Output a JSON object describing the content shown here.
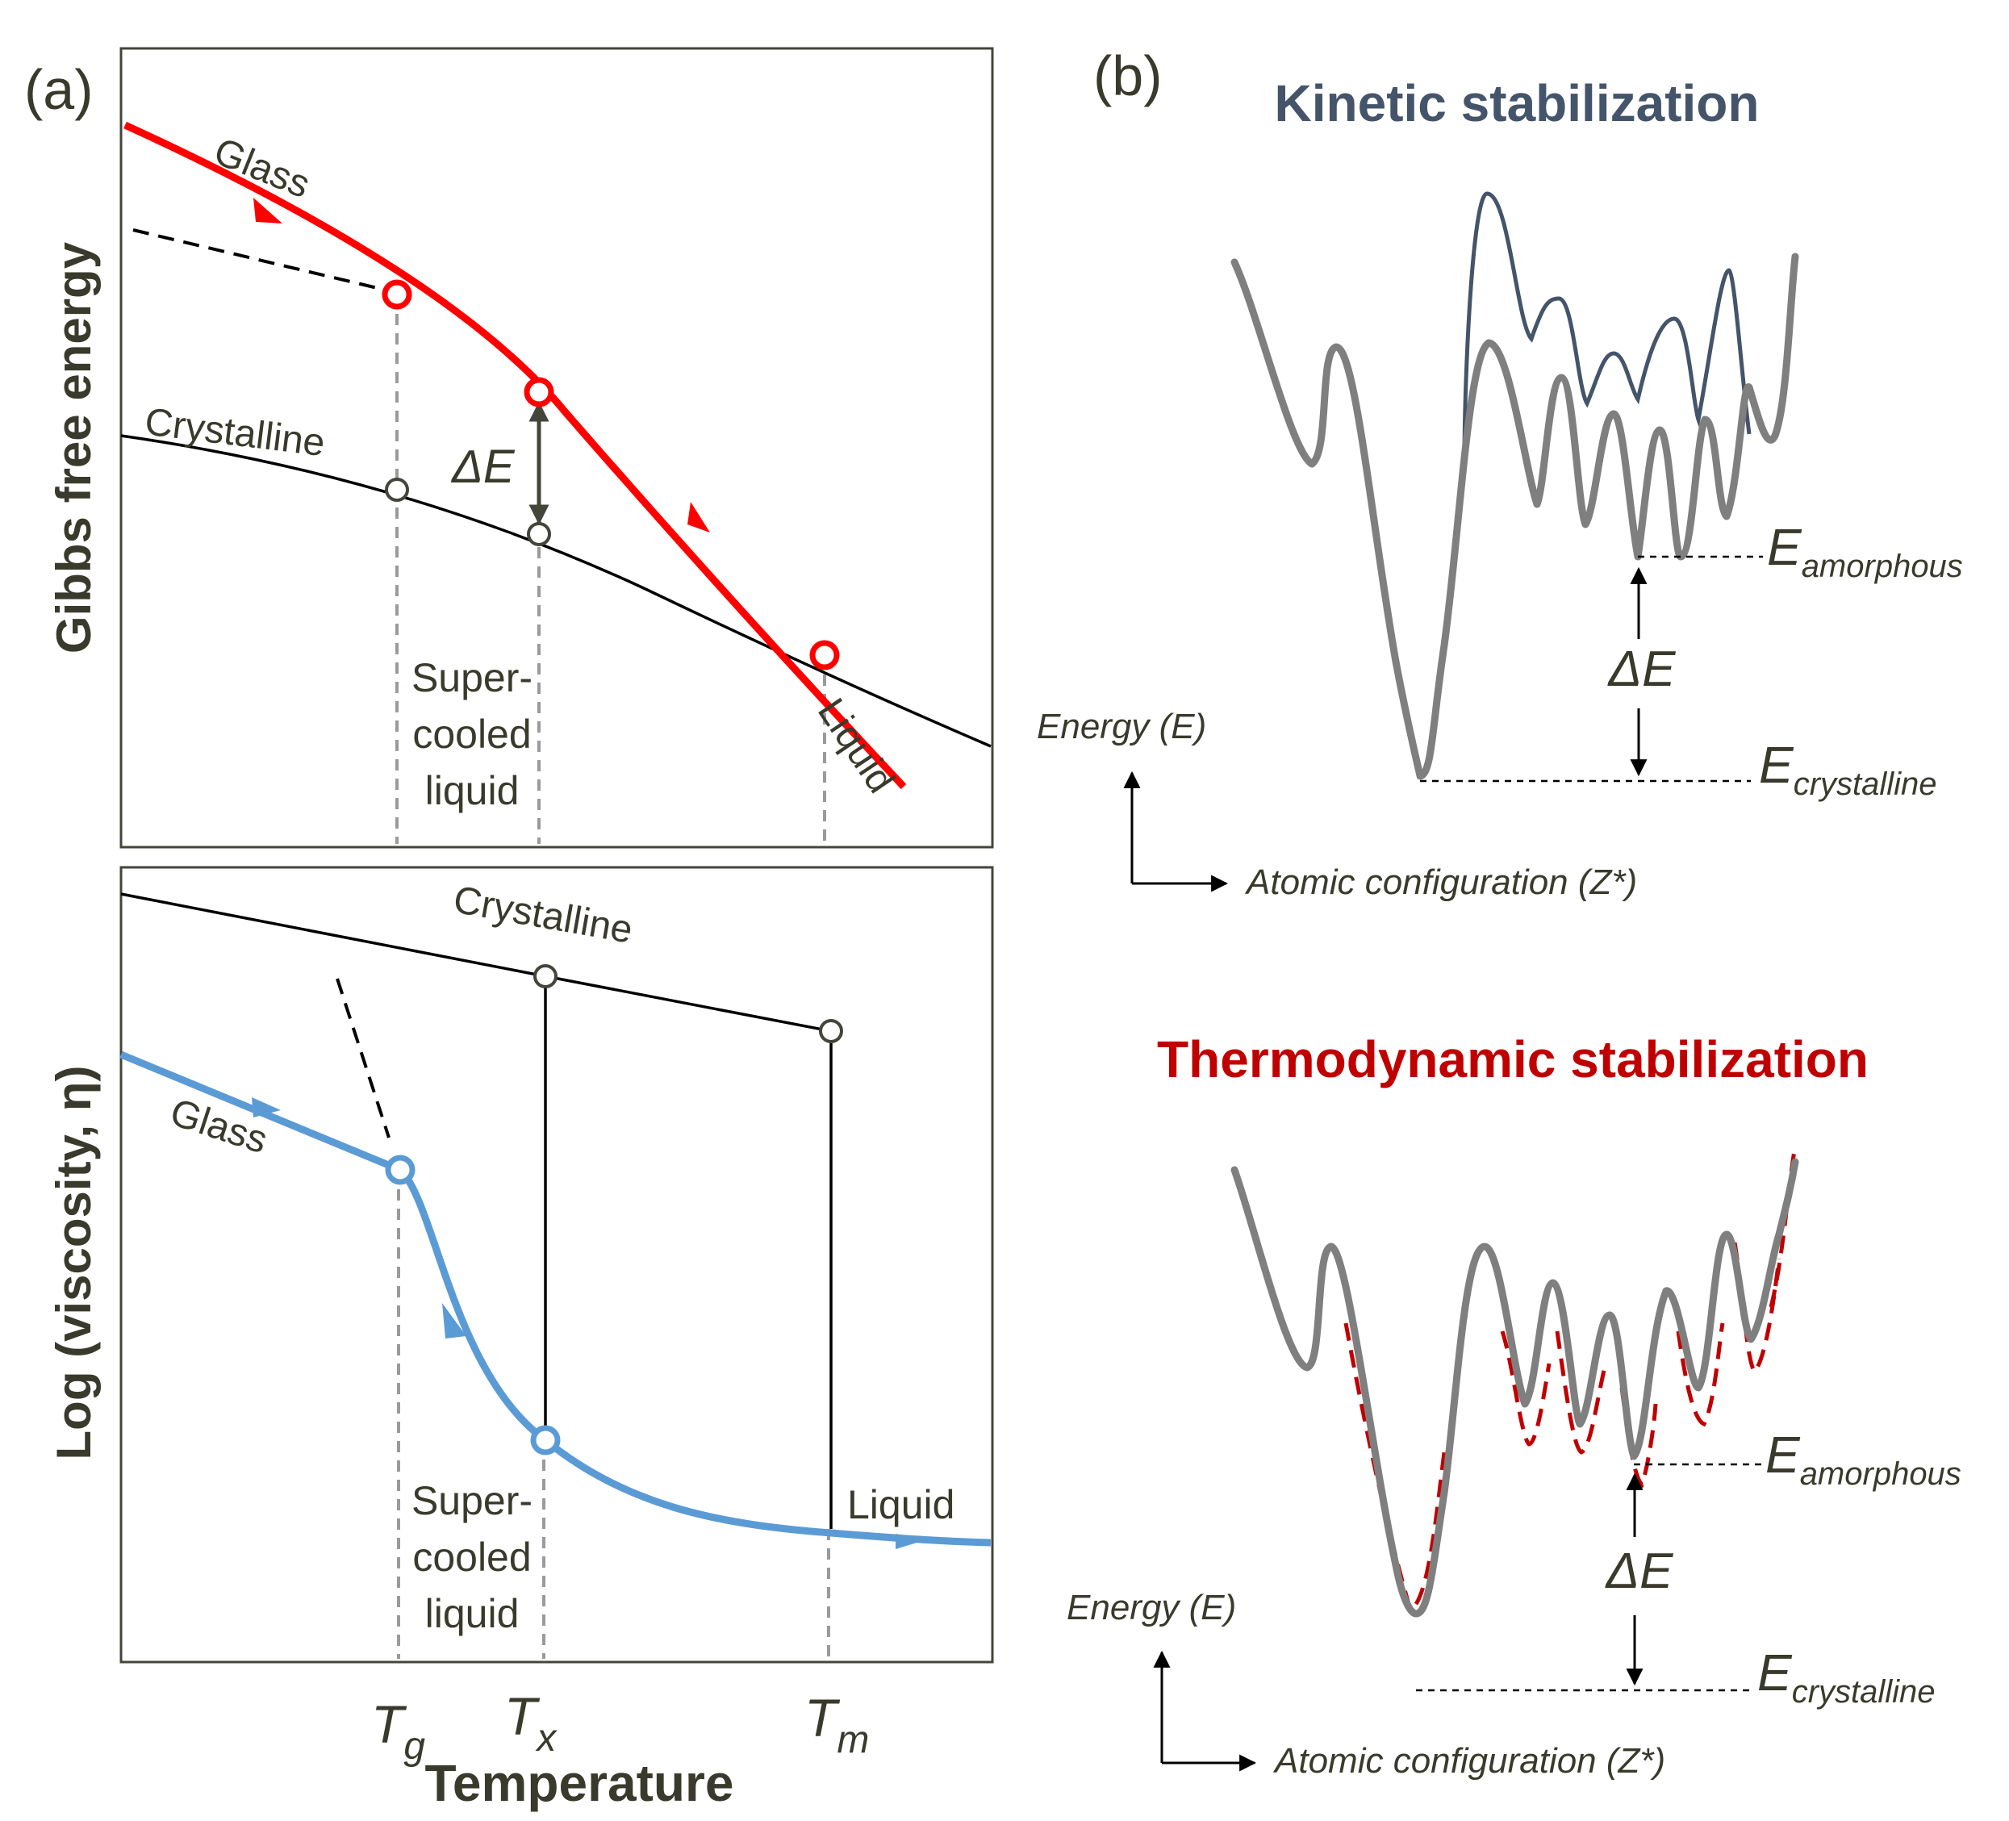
{
  "panel_a": {
    "label": "(a)",
    "top_plot": {
      "ylabel": "Gibbs free energy",
      "glass": "Glass",
      "crystalline": "Crystalline",
      "delta_e": "ΔE",
      "supercooled": [
        "Super-",
        "cooled",
        "liquid"
      ],
      "liquid": "Liquid"
    },
    "bottom_plot": {
      "ylabel": "Log (viscosity, η)",
      "crystalline": "Crystalline",
      "glass": "Glass",
      "supercooled": [
        "Super-",
        "cooled",
        "liquid"
      ],
      "liquid": "Liquid"
    },
    "x_ticks": [
      {
        "main": "T",
        "sub": "g"
      },
      {
        "main": "T",
        "sub": "x"
      },
      {
        "main": "T",
        "sub": "m"
      }
    ],
    "xlabel": "Temperature"
  },
  "panel_b": {
    "label": "(b)",
    "kinetic": {
      "title": "Kinetic stabilization",
      "title_color": "#44546a",
      "y_axis": "Energy (E)",
      "x_axis": "Atomic configuration (Z*)",
      "e_amorphous": {
        "main": "E",
        "sub": "amorphous"
      },
      "e_crystalline": {
        "main": "E",
        "sub": "crystalline"
      },
      "delta_e": "ΔE"
    },
    "thermo": {
      "title": "Thermodynamic stabilization",
      "title_color": "#c00000",
      "y_axis": "Energy (E)",
      "x_axis": "Atomic configuration (Z*)",
      "e_amorphous": {
        "main": "E",
        "sub": "amorphous"
      },
      "e_crystalline": {
        "main": "E",
        "sub": "crystalline"
      },
      "delta_e": "ΔE"
    }
  },
  "colors": {
    "glass_red": "#ff0000",
    "glass_blue": "#5b9bd5",
    "landscape_gray": "#7f7f7f",
    "kinetic_navy": "#44546a",
    "thermo_red": "#c00000"
  }
}
